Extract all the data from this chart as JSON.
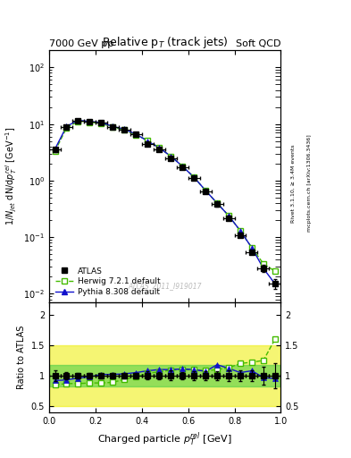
{
  "title": "Relative p$_T$ (track jets)",
  "top_left_label": "7000 GeV pp",
  "top_right_label": "Soft QCD",
  "right_label1": "Rivet 3.1.10, ≥ 3.4M events",
  "right_label2": "mcplots.cern.ch [arXiv:1306.3436]",
  "watermark": "ATLAS_2011_I919017",
  "xlabel": "Charged particle $p_T^{rel}$ [GeV]",
  "ylabel": "$1/N_{jet}$ dN/d$p_T^{rel}$ [GeV$^{-1}$]",
  "ylabel_ratio": "Ratio to ATLAS",
  "xlim": [
    0.0,
    1.0
  ],
  "ylim_main": [
    0.007,
    200
  ],
  "ylim_ratio": [
    0.4,
    2.2
  ],
  "atlas_x": [
    0.025,
    0.075,
    0.125,
    0.175,
    0.225,
    0.275,
    0.325,
    0.375,
    0.425,
    0.475,
    0.525,
    0.575,
    0.625,
    0.675,
    0.725,
    0.775,
    0.825,
    0.875,
    0.925,
    0.975
  ],
  "atlas_y": [
    3.5,
    9.0,
    11.5,
    11.0,
    10.5,
    9.0,
    8.0,
    6.5,
    4.5,
    3.5,
    2.5,
    1.7,
    1.1,
    0.65,
    0.38,
    0.22,
    0.11,
    0.055,
    0.028,
    0.015
  ],
  "atlas_yerr": [
    0.3,
    0.5,
    0.5,
    0.5,
    0.4,
    0.4,
    0.4,
    0.3,
    0.3,
    0.2,
    0.2,
    0.1,
    0.08,
    0.05,
    0.03,
    0.02,
    0.01,
    0.005,
    0.004,
    0.003
  ],
  "atlas_xerr": [
    0.025,
    0.025,
    0.025,
    0.025,
    0.025,
    0.025,
    0.025,
    0.025,
    0.025,
    0.025,
    0.025,
    0.025,
    0.025,
    0.025,
    0.025,
    0.025,
    0.025,
    0.025,
    0.025,
    0.025
  ],
  "herwig_x": [
    0.025,
    0.075,
    0.125,
    0.175,
    0.225,
    0.275,
    0.325,
    0.375,
    0.425,
    0.475,
    0.525,
    0.575,
    0.625,
    0.675,
    0.725,
    0.775,
    0.825,
    0.875,
    0.925,
    0.975
  ],
  "herwig_y": [
    3.3,
    8.5,
    11.2,
    10.8,
    10.3,
    8.8,
    7.8,
    6.4,
    5.2,
    3.8,
    2.7,
    1.8,
    1.15,
    0.67,
    0.4,
    0.24,
    0.13,
    0.065,
    0.034,
    0.025
  ],
  "herwig_ratio": [
    0.85,
    0.87,
    0.87,
    0.88,
    0.88,
    0.89,
    0.94,
    0.98,
    1.04,
    1.06,
    1.09,
    1.1,
    1.1,
    1.08,
    1.1,
    1.13,
    1.2,
    1.22,
    1.25,
    1.6
  ],
  "pythia_x": [
    0.025,
    0.075,
    0.125,
    0.175,
    0.225,
    0.275,
    0.325,
    0.375,
    0.425,
    0.475,
    0.525,
    0.575,
    0.625,
    0.675,
    0.725,
    0.775,
    0.825,
    0.875,
    0.925,
    0.975
  ],
  "pythia_y": [
    3.6,
    9.1,
    11.6,
    11.1,
    10.6,
    9.1,
    8.1,
    6.6,
    5.0,
    3.8,
    2.7,
    1.8,
    1.15,
    0.67,
    0.4,
    0.24,
    0.13,
    0.065,
    0.028,
    0.015
  ],
  "pythia_ratio": [
    0.92,
    0.93,
    0.96,
    0.98,
    1.02,
    1.02,
    1.03,
    1.05,
    1.08,
    1.1,
    1.1,
    1.11,
    1.1,
    1.07,
    1.18,
    1.12,
    1.05,
    1.08,
    0.97,
    0.95
  ],
  "band_yellow_lo": 0.5,
  "band_yellow_hi": 1.5,
  "band_green_lo": 0.82,
  "band_green_hi": 1.18,
  "atlas_color": "#000000",
  "herwig_color": "#44bb00",
  "pythia_color": "#1111cc",
  "band_yellow": "#eeee00",
  "band_green": "#44cc44",
  "band_yellow_alpha": 0.55,
  "band_green_alpha": 0.55
}
